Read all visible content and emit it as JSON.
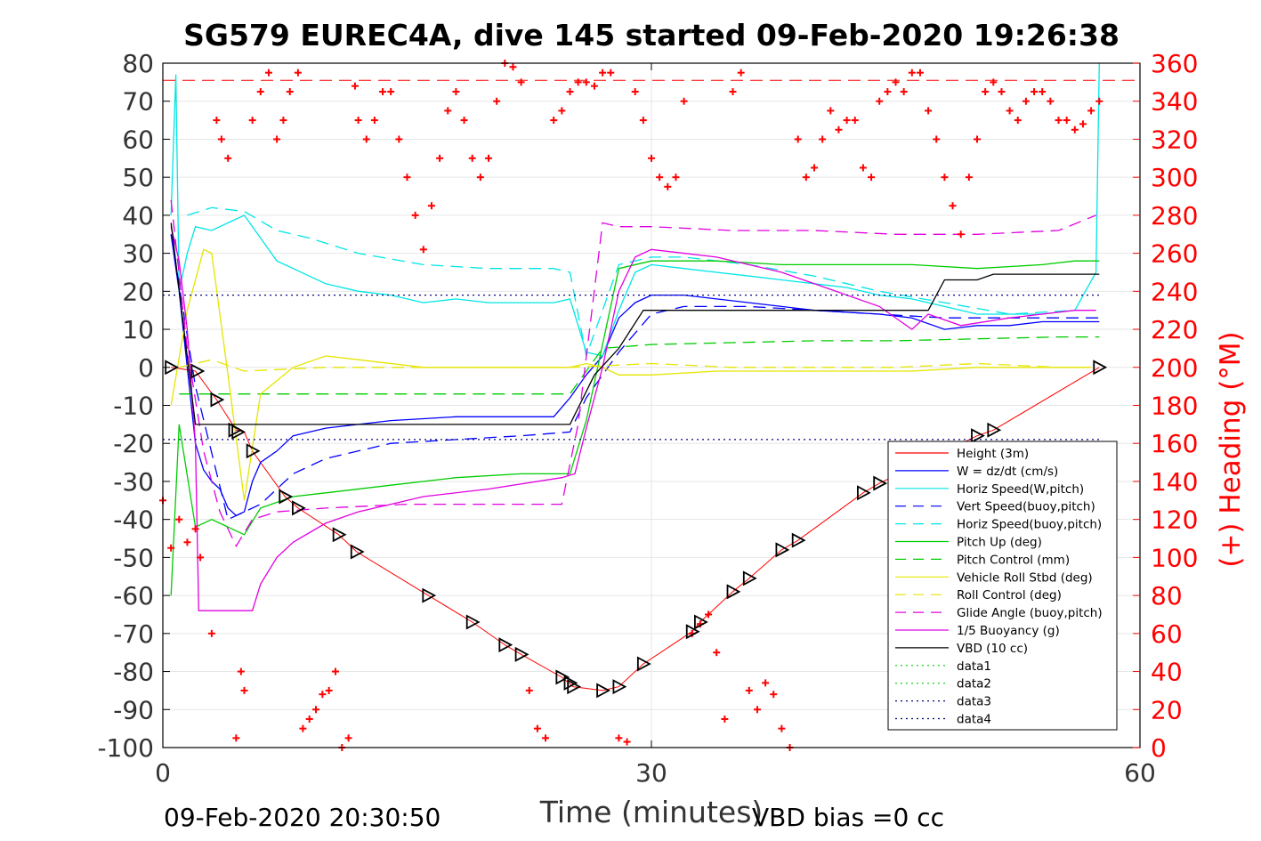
{
  "chart_data": {
    "type": "line",
    "title": "SG579 EUREC4A, dive 145 started 09-Feb-2020 19:26:38",
    "xlabel": "Time (minutes)",
    "ylabel_right": "(+) Heading (°M)",
    "footer_left": "09-Feb-2020 20:30:50",
    "footer_right": "VBD bias =0 cc",
    "xlim": [
      0,
      60
    ],
    "ylim": [
      -100,
      80
    ],
    "ylim_right": [
      0,
      360
    ],
    "xticks": [
      "0",
      "30",
      "60"
    ],
    "yticks": [
      "80",
      "70",
      "60",
      "50",
      "40",
      "30",
      "20",
      "10",
      "0",
      "-10",
      "-20",
      "-30",
      "-40",
      "-50",
      "-60",
      "-70",
      "-80",
      "-90",
      "-100"
    ],
    "yticks_right": [
      "360",
      "340",
      "320",
      "300",
      "280",
      "260",
      "240",
      "220",
      "200",
      "180",
      "160",
      "140",
      "120",
      "100",
      "80",
      "60",
      "40",
      "20",
      "0"
    ],
    "grid": true,
    "legend_position": "bottom-right",
    "colors": {
      "heading": "#ff0000",
      "right_axis": "#ff0000",
      "left_axis": "#000000"
    },
    "series": [
      {
        "name": "Height (3m)",
        "color": "#ff0000",
        "dash": "solid",
        "x": [
          0.5,
          2,
          3.3,
          4.5,
          5,
          5.5,
          7.5,
          8.3,
          10.8,
          11.9,
          16.3,
          19,
          21,
          22,
          24.5,
          25.2,
          27,
          28,
          29.5,
          32.5,
          33,
          35,
          36,
          38,
          39,
          43,
          44,
          50,
          51,
          57.5
        ],
        "y": [
          0,
          -1,
          -8.5,
          -16.5,
          -17,
          -22,
          -34,
          -37,
          -44,
          -48.5,
          -60,
          -67,
          -73,
          -75.5,
          -81.5,
          -84,
          -85,
          -84,
          -78,
          -69.5,
          -67,
          -59,
          -55.5,
          -48,
          -45.5,
          -33,
          -30.5,
          -18,
          -16.5,
          0
        ]
      },
      {
        "name": "W = dz/dt (cm/s)",
        "color": "#0000ff",
        "dash": "solid",
        "x": [
          0.5,
          1,
          1.5,
          2,
          2.5,
          3,
          3.5,
          4,
          4.5,
          5,
          5.5,
          6,
          7,
          8,
          10,
          12,
          14,
          16,
          18,
          20,
          22,
          24,
          25,
          26,
          27,
          28,
          29,
          30,
          32,
          34,
          36,
          38,
          40,
          42,
          44,
          46,
          48,
          50,
          52,
          54,
          56,
          57.5
        ],
        "y": [
          35,
          20,
          0,
          -20,
          -27,
          -30,
          -32,
          -37,
          -39,
          -38,
          -30,
          -25,
          -22,
          -18,
          -16,
          -15,
          -14,
          -13.5,
          -13,
          -13,
          -13,
          -13,
          -8,
          -2,
          3,
          13,
          17,
          19,
          19,
          18,
          17,
          16,
          15,
          14.5,
          14,
          13,
          10,
          11,
          11,
          12,
          12,
          12
        ]
      },
      {
        "name": "Horiz Speed(W,pitch)",
        "color": "#00e5e5",
        "dash": "solid",
        "x": [
          0.5,
          0.8,
          1,
          1.5,
          2,
          3,
          4,
          5,
          6,
          7,
          8,
          10,
          12,
          14,
          16,
          18,
          20,
          22,
          24,
          25,
          26,
          27,
          28,
          29,
          30,
          32,
          34,
          36,
          38,
          40,
          42,
          44,
          46,
          48,
          50,
          52,
          54,
          56,
          57.3,
          57.5
        ],
        "y": [
          40,
          77,
          20,
          30,
          37,
          36,
          38,
          40,
          34,
          28,
          26,
          22,
          20,
          19,
          17,
          18,
          17,
          17,
          17,
          18,
          4,
          3,
          15,
          25,
          27,
          26,
          25,
          24,
          23,
          22,
          21,
          19,
          18,
          16,
          14,
          14,
          14,
          15,
          25,
          80
        ]
      },
      {
        "name": "Vert Speed(buoy,pitch)",
        "color": "#0000ff",
        "dash": "dash",
        "x": [
          0.5,
          2,
          4,
          6,
          8,
          10,
          14,
          18,
          22,
          25,
          26,
          28,
          30,
          32,
          36,
          40,
          44,
          48,
          52,
          56,
          57.5
        ],
        "y": [
          35,
          -5,
          -40,
          -36,
          -28,
          -24,
          -20,
          -19,
          -18,
          -17,
          -8,
          4,
          14,
          16,
          16,
          15,
          14,
          13,
          13,
          13,
          13
        ]
      },
      {
        "name": "Horiz Speed(buoy,pitch)",
        "color": "#00e5e5",
        "dash": "dash",
        "x": [
          1.5,
          3,
          5,
          7,
          9,
          12,
          16,
          20,
          24,
          25,
          26,
          28,
          30,
          32,
          36,
          40,
          44,
          48,
          52,
          56
        ],
        "y": [
          40,
          42,
          41,
          36,
          34,
          30,
          27,
          26,
          26,
          25,
          3,
          27,
          29,
          29,
          27,
          24,
          20,
          17,
          14,
          15
        ]
      },
      {
        "name": "Pitch Up (deg)",
        "color": "#00cc00",
        "dash": "solid",
        "x": [
          0.5,
          1,
          2,
          3,
          4,
          5,
          6,
          8,
          10,
          14,
          18,
          22,
          25,
          26,
          28,
          30,
          34,
          38,
          42,
          46,
          50,
          54,
          56,
          57.5
        ],
        "y": [
          -60,
          -15,
          -42,
          -40,
          -42,
          -44,
          -37,
          -34,
          -33,
          -31,
          -29,
          -28,
          -28,
          -14,
          26,
          28,
          28,
          27,
          27,
          27,
          26,
          27,
          28,
          28
        ]
      },
      {
        "name": "Pitch Control (mm)",
        "color": "#00cc00",
        "dash": "dash",
        "x": [
          1,
          5,
          25,
          27,
          30,
          35,
          40,
          45,
          50,
          55,
          57.5
        ],
        "y": [
          -7,
          -7,
          -7,
          5,
          6,
          6.5,
          7,
          7,
          7.5,
          8,
          8
        ]
      },
      {
        "name": "Vehicle Roll Stbd (deg)",
        "color": "#e5e500",
        "dash": "solid",
        "x": [
          0.5,
          1.5,
          2.5,
          3,
          4,
          5,
          6,
          8,
          10,
          12,
          16,
          20,
          24,
          25,
          26,
          27,
          28,
          30,
          34,
          38,
          42,
          46,
          50,
          54,
          57
        ],
        "y": [
          -10,
          15,
          31,
          30,
          -2,
          -35,
          -7,
          0,
          3,
          2,
          0,
          0,
          0,
          0,
          1,
          0,
          -2,
          -2,
          -1,
          -1,
          -1,
          -1,
          0,
          0,
          0
        ]
      },
      {
        "name": "Roll Control (deg)",
        "color": "#e5e500",
        "dash": "dash",
        "x": [
          1,
          3,
          5,
          10,
          15,
          20,
          25,
          30,
          35,
          40,
          45,
          50,
          55,
          57
        ],
        "y": [
          0,
          2,
          -1,
          0,
          0,
          0,
          0,
          1,
          0,
          0,
          0,
          1,
          0,
          0
        ]
      },
      {
        "name": "Glide Angle (buoy,pitch)",
        "color": "#e000e0",
        "dash": "dash",
        "x": [
          0.5,
          1.5,
          2.5,
          3.5,
          4.5,
          5.5,
          7,
          10,
          15,
          20,
          24.5,
          25.5,
          27,
          28,
          30,
          35,
          40,
          45,
          50,
          55,
          57.3
        ],
        "y": [
          44,
          5,
          -22,
          -38,
          -47,
          -40,
          -38,
          -37,
          -36,
          -36,
          -36,
          -15,
          38,
          37,
          37,
          36,
          36,
          35,
          35,
          36,
          40
        ]
      },
      {
        "name": "1/5 Buoyancy (g)",
        "color": "#e000e0",
        "dash": "solid",
        "x": [
          0.5,
          1,
          1.5,
          2,
          2.2,
          3,
          4,
          5,
          5.5,
          6,
          7,
          8,
          10,
          12,
          14,
          16,
          20,
          24.5,
          25.3,
          26,
          27,
          28,
          29,
          30,
          34,
          38,
          40,
          44,
          46,
          47,
          49,
          52,
          56,
          57.3
        ],
        "y": [
          37,
          28,
          10,
          -20,
          -64,
          -64,
          -64,
          -64,
          -64,
          -57,
          -50,
          -46,
          -41,
          -38,
          -36,
          -34,
          -32,
          -29,
          -28,
          -16,
          0,
          20,
          29,
          31,
          29,
          25,
          22,
          16,
          10,
          14,
          11,
          13,
          15,
          15
        ]
      },
      {
        "name": "VBD (10 cc)",
        "color": "#000000",
        "dash": "solid",
        "x": [
          0.5,
          2,
          5,
          10,
          20,
          25,
          26.5,
          28,
          29.5,
          30,
          35,
          40,
          45,
          47,
          48,
          50,
          51,
          55,
          57.5
        ],
        "y": [
          38,
          -15,
          -15,
          -15,
          -15,
          -15,
          -2,
          5,
          15,
          15,
          15,
          15,
          15,
          15,
          23,
          23,
          24.5,
          24.5,
          24.5
        ]
      },
      {
        "name": "data1",
        "color": "#00cc00",
        "dash": "dot",
        "x": [],
        "y": []
      },
      {
        "name": "data2",
        "color": "#00cc00",
        "dash": "dot",
        "x": [],
        "y": []
      },
      {
        "name": "data3",
        "color": "#000080",
        "dash": "dot",
        "x": [
          0,
          57.5
        ],
        "y": [
          19,
          19
        ]
      },
      {
        "name": "data4",
        "color": "#000080",
        "dash": "dot",
        "x": [
          0,
          57.5
        ],
        "y": [
          -19,
          -19
        ]
      }
    ],
    "heading_reference": {
      "axis": "right",
      "value": 351,
      "color": "#ff0000",
      "dash": "dash"
    },
    "heading": {
      "axis": "right",
      "color": "#ff0000",
      "marker": "+",
      "x": [
        0,
        0.5,
        1,
        1.5,
        2,
        2.3,
        3,
        3.3,
        3.6,
        4,
        4.5,
        4.8,
        5,
        5.5,
        6,
        6.5,
        7,
        7.4,
        7.8,
        8.3,
        8.6,
        9,
        9.4,
        9.8,
        10.2,
        10.6,
        11,
        11.4,
        11.8,
        12,
        12.5,
        13,
        13.5,
        14,
        14.5,
        15,
        15.5,
        16,
        16.5,
        17,
        17.5,
        18,
        18.5,
        19,
        19.5,
        20,
        20.5,
        21,
        21.5,
        22,
        22.5,
        23,
        23.5,
        24,
        24.5,
        25,
        25.5,
        26,
        26.5,
        27,
        27.5,
        28,
        28.5,
        29,
        29.5,
        30,
        30.5,
        31,
        31.5,
        32,
        32.5,
        33,
        33.5,
        34,
        34.5,
        35,
        35.5,
        36,
        36.5,
        37,
        37.5,
        38,
        38.5,
        39,
        39.5,
        40,
        40.5,
        41,
        41.5,
        42,
        42.5,
        43,
        43.5,
        44,
        44.5,
        45,
        45.5,
        46,
        46.5,
        47,
        47.5,
        48,
        48.5,
        49,
        49.5,
        50,
        50.5,
        51,
        51.5,
        52,
        52.5,
        53,
        53.5,
        54,
        54.5,
        55,
        55.5,
        56,
        56.5,
        57,
        57.5
      ],
      "y": [
        130,
        105,
        120,
        108,
        115,
        100,
        60,
        330,
        320,
        310,
        5,
        40,
        30,
        330,
        345,
        355,
        320,
        330,
        345,
        355,
        10,
        15,
        20,
        28,
        30,
        40,
        0,
        5,
        348,
        330,
        320,
        330,
        345,
        345,
        320,
        300,
        280,
        262,
        285,
        310,
        335,
        345,
        330,
        310,
        300,
        310,
        340,
        360,
        358,
        350,
        30,
        10,
        5,
        330,
        335,
        345,
        350,
        350,
        348,
        355,
        355,
        5,
        3,
        345,
        330,
        310,
        300,
        295,
        300,
        340,
        60,
        65,
        70,
        50,
        15,
        345,
        355,
        30,
        20,
        34,
        28,
        10,
        0,
        320,
        300,
        305,
        320,
        335,
        325,
        330,
        330,
        305,
        300,
        340,
        345,
        350,
        345,
        355,
        355,
        335,
        320,
        300,
        285,
        270,
        300,
        320,
        345,
        350,
        345,
        335,
        330,
        340,
        345,
        345,
        340,
        330,
        330,
        325,
        328,
        335,
        340
      ],
      "label_markers": true
    },
    "triangle_markers": {
      "color": "#000000",
      "x": [
        0.5,
        2.1,
        3.3,
        4.4,
        4.6,
        5.5,
        7.5,
        8.3,
        10.8,
        11.9,
        16.3,
        19,
        21,
        22,
        24.5,
        25,
        25.2,
        27,
        28,
        29.5,
        32.5,
        33,
        35,
        36,
        38,
        39,
        43,
        44,
        50,
        51,
        57.5
      ],
      "y": [
        0,
        -1,
        -8.5,
        -16.5,
        -17,
        -22,
        -34,
        -37,
        -44,
        -48.5,
        -60,
        -67,
        -73,
        -75.5,
        -81.5,
        -83,
        -84,
        -85,
        -84,
        -78,
        -69.5,
        -67,
        -59,
        -55.5,
        -48,
        -45.5,
        -33,
        -30.5,
        -18,
        -16.5,
        0
      ]
    }
  }
}
